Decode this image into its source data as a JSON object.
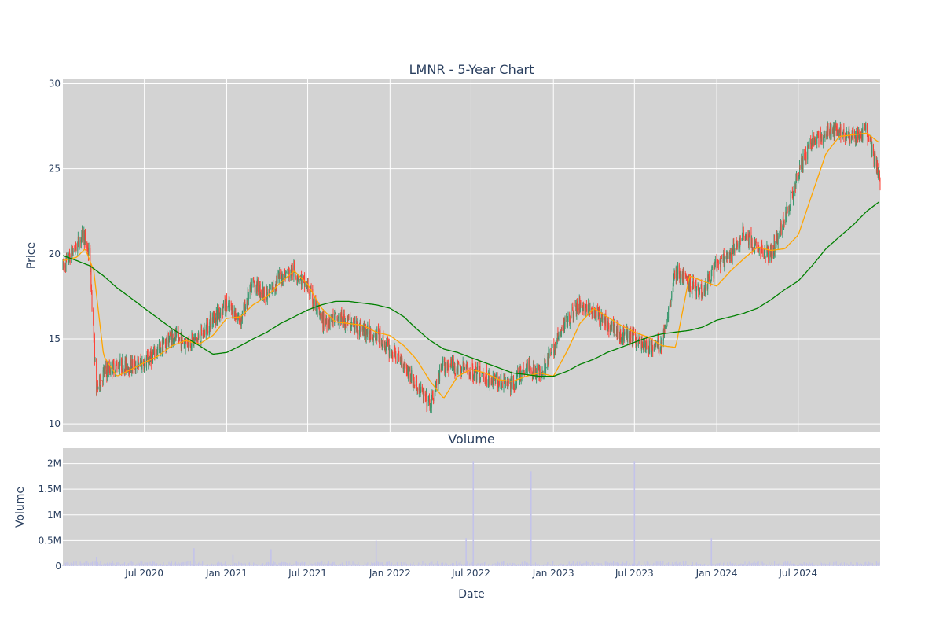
{
  "chart_data": [
    {
      "type": "candlestick",
      "title": "LMNR - 5-Year Chart",
      "xlabel": "",
      "ylabel": "Price",
      "ylim": [
        9.5,
        30.3
      ],
      "yticks": [
        10,
        15,
        20,
        25,
        30
      ],
      "grid": true,
      "legend": "none",
      "colors": {
        "increasing": "#3d9970",
        "decreasing": "#ff4136",
        "ma_short": "#ffa500",
        "ma_long": "#008000",
        "background": "#d3d3d3"
      },
      "series": [
        {
          "kind": "close",
          "x": [
            "2020-01-01",
            "2020-02-01",
            "2020-02-16",
            "2020-03-01",
            "2020-03-16",
            "2020-04-01",
            "2020-05-01",
            "2020-06-01",
            "2020-07-01",
            "2020-08-01",
            "2020-09-01",
            "2020-10-01",
            "2020-11-01",
            "2020-12-01",
            "2021-01-01",
            "2021-02-01",
            "2021-03-01",
            "2021-04-01",
            "2021-05-01",
            "2021-06-01",
            "2021-07-01",
            "2021-08-01",
            "2021-09-01",
            "2021-10-01",
            "2021-11-01",
            "2021-12-01",
            "2022-01-01",
            "2022-02-01",
            "2022-03-01",
            "2022-04-01",
            "2022-05-01",
            "2022-06-01",
            "2022-07-01",
            "2022-08-01",
            "2022-09-01",
            "2022-10-01",
            "2022-11-01",
            "2022-12-01",
            "2023-01-01",
            "2023-02-01",
            "2023-03-01",
            "2023-04-01",
            "2023-05-01",
            "2023-06-01",
            "2023-07-01",
            "2023-08-01",
            "2023-09-01",
            "2023-10-01",
            "2023-11-01",
            "2023-12-01",
            "2024-01-01",
            "2024-02-01",
            "2024-03-01",
            "2024-04-01",
            "2024-05-01",
            "2024-06-01",
            "2024-07-01",
            "2024-08-01",
            "2024-09-01",
            "2024-10-01",
            "2024-11-01",
            "2024-12-01",
            "2024-12-31"
          ],
          "values": [
            19.2,
            20.5,
            21.2,
            19.8,
            12.0,
            13.0,
            13.5,
            13.4,
            13.6,
            14.3,
            15.2,
            14.8,
            15.0,
            16.2,
            17.0,
            16.1,
            18.3,
            17.5,
            18.7,
            19.0,
            18.0,
            16.0,
            16.2,
            16.0,
            15.5,
            15.3,
            14.3,
            13.6,
            12.2,
            11.1,
            13.5,
            13.3,
            13.1,
            12.8,
            12.5,
            12.3,
            13.4,
            13.0,
            14.4,
            16.2,
            17.0,
            16.5,
            15.9,
            15.3,
            15.0,
            14.5,
            14.7,
            19.0,
            18.2,
            17.8,
            19.4,
            19.8,
            21.3,
            20.2,
            20.0,
            22.0,
            24.8,
            26.7,
            27.0,
            27.3,
            26.8,
            27.2,
            24.3
          ]
        },
        {
          "kind": "ma_short",
          "x": [
            "2020-01-01",
            "2020-02-01",
            "2020-02-20",
            "2020-03-10",
            "2020-04-01",
            "2020-05-01",
            "2020-06-01",
            "2020-07-01",
            "2020-08-01",
            "2020-09-01",
            "2020-10-01",
            "2020-11-01",
            "2020-12-01",
            "2021-01-01",
            "2021-02-01",
            "2021-03-01",
            "2021-04-01",
            "2021-05-01",
            "2021-06-01",
            "2021-07-01",
            "2021-08-01",
            "2021-09-01",
            "2021-10-01",
            "2021-11-01",
            "2021-12-01",
            "2022-01-01",
            "2022-02-01",
            "2022-03-01",
            "2022-04-01",
            "2022-05-01",
            "2022-06-01",
            "2022-07-01",
            "2022-08-01",
            "2022-09-01",
            "2022-10-01",
            "2022-11-01",
            "2022-12-01",
            "2023-01-01",
            "2023-02-01",
            "2023-03-01",
            "2023-04-01",
            "2023-05-01",
            "2023-06-01",
            "2023-07-01",
            "2023-08-01",
            "2023-09-01",
            "2023-10-01",
            "2023-11-01",
            "2023-12-01",
            "2024-01-01",
            "2024-02-01",
            "2024-03-01",
            "2024-04-01",
            "2024-05-01",
            "2024-06-01",
            "2024-07-01",
            "2024-08-01",
            "2024-09-01",
            "2024-10-01",
            "2024-11-01",
            "2024-12-01",
            "2024-12-31"
          ],
          "values": [
            19.6,
            19.8,
            20.3,
            19.0,
            14.0,
            12.8,
            13.2,
            13.6,
            14.0,
            14.6,
            14.9,
            14.7,
            15.2,
            16.2,
            16.3,
            17.0,
            17.5,
            18.3,
            19.0,
            18.2,
            16.8,
            16.0,
            15.9,
            15.8,
            15.4,
            15.2,
            14.6,
            13.8,
            12.5,
            11.5,
            12.8,
            13.2,
            13.0,
            12.6,
            12.5,
            12.8,
            13.0,
            12.8,
            14.3,
            15.9,
            16.8,
            16.3,
            15.8,
            15.4,
            15.1,
            14.6,
            14.5,
            18.7,
            18.4,
            18.1,
            19.0,
            19.7,
            20.4,
            20.2,
            20.3,
            21.1,
            23.5,
            25.9,
            26.9,
            27.0,
            27.1,
            26.5
          ]
        },
        {
          "kind": "ma_long",
          "x": [
            "2020-01-01",
            "2020-02-01",
            "2020-03-01",
            "2020-04-01",
            "2020-05-01",
            "2020-06-01",
            "2020-07-01",
            "2020-08-01",
            "2020-09-01",
            "2020-10-01",
            "2020-11-01",
            "2020-12-01",
            "2021-01-01",
            "2021-02-01",
            "2021-03-01",
            "2021-04-01",
            "2021-05-01",
            "2021-06-01",
            "2021-07-01",
            "2021-08-01",
            "2021-09-01",
            "2021-10-01",
            "2021-11-01",
            "2021-12-01",
            "2022-01-01",
            "2022-02-01",
            "2022-03-01",
            "2022-04-01",
            "2022-05-01",
            "2022-06-01",
            "2022-07-01",
            "2022-08-01",
            "2022-09-01",
            "2022-10-01",
            "2022-11-01",
            "2022-12-01",
            "2023-01-01",
            "2023-02-01",
            "2023-03-01",
            "2023-04-01",
            "2023-05-01",
            "2023-06-01",
            "2023-07-01",
            "2023-08-01",
            "2023-09-01",
            "2023-10-01",
            "2023-11-01",
            "2023-12-01",
            "2024-01-01",
            "2024-02-01",
            "2024-03-01",
            "2024-04-01",
            "2024-05-01",
            "2024-06-01",
            "2024-07-01",
            "2024-08-01",
            "2024-09-01",
            "2024-10-01",
            "2024-11-01",
            "2024-12-01",
            "2024-12-31"
          ],
          "values": [
            19.9,
            19.6,
            19.3,
            18.7,
            18.0,
            17.4,
            16.8,
            16.2,
            15.6,
            15.1,
            14.6,
            14.1,
            14.2,
            14.6,
            15.0,
            15.4,
            15.9,
            16.3,
            16.7,
            17.0,
            17.2,
            17.2,
            17.1,
            17.0,
            16.8,
            16.3,
            15.6,
            14.9,
            14.4,
            14.2,
            13.9,
            13.6,
            13.3,
            13.0,
            12.9,
            12.8,
            12.8,
            13.1,
            13.5,
            13.8,
            14.2,
            14.5,
            14.8,
            15.1,
            15.3,
            15.4,
            15.5,
            15.7,
            16.1,
            16.3,
            16.5,
            16.8,
            17.3,
            17.9,
            18.4,
            19.3,
            20.3,
            21.0,
            21.7,
            22.5,
            23.1
          ]
        }
      ]
    },
    {
      "type": "bar",
      "title": "Volume",
      "xlabel": "Date",
      "ylabel": "Volume",
      "ylim": [
        0,
        2.3
      ],
      "yticks": [
        0,
        0.5,
        1,
        1.5,
        2
      ],
      "yticklabels": [
        "0",
        "0.5M",
        "1M",
        "1.5M",
        "2M"
      ],
      "xticks": [
        "2020-07-01",
        "2021-01-01",
        "2021-07-01",
        "2022-01-01",
        "2022-07-01",
        "2023-01-01",
        "2023-07-01",
        "2024-01-01",
        "2024-07-01"
      ],
      "xticklabels": [
        "Jul 2020",
        "Jan 2021",
        "Jul 2021",
        "Jan 2022",
        "Jul 2022",
        "Jan 2023",
        "Jul 2023",
        "Jan 2024",
        "Jul 2024"
      ],
      "grid": true,
      "colors": {
        "bars": "#c3c3ea",
        "background": "#d3d3d3"
      },
      "spikes": [
        {
          "date": "2020-03-16",
          "value": 0.18
        },
        {
          "date": "2020-10-20",
          "value": 0.35
        },
        {
          "date": "2021-01-15",
          "value": 0.22
        },
        {
          "date": "2021-04-10",
          "value": 0.33
        },
        {
          "date": "2021-12-01",
          "value": 0.5
        },
        {
          "date": "2022-06-20",
          "value": 0.55
        },
        {
          "date": "2022-07-06",
          "value": 2.05
        },
        {
          "date": "2022-11-12",
          "value": 1.85
        },
        {
          "date": "2023-07-01",
          "value": 2.05
        },
        {
          "date": "2023-12-20",
          "value": 0.55
        }
      ],
      "baseline_volume_m": 0.05
    }
  ]
}
